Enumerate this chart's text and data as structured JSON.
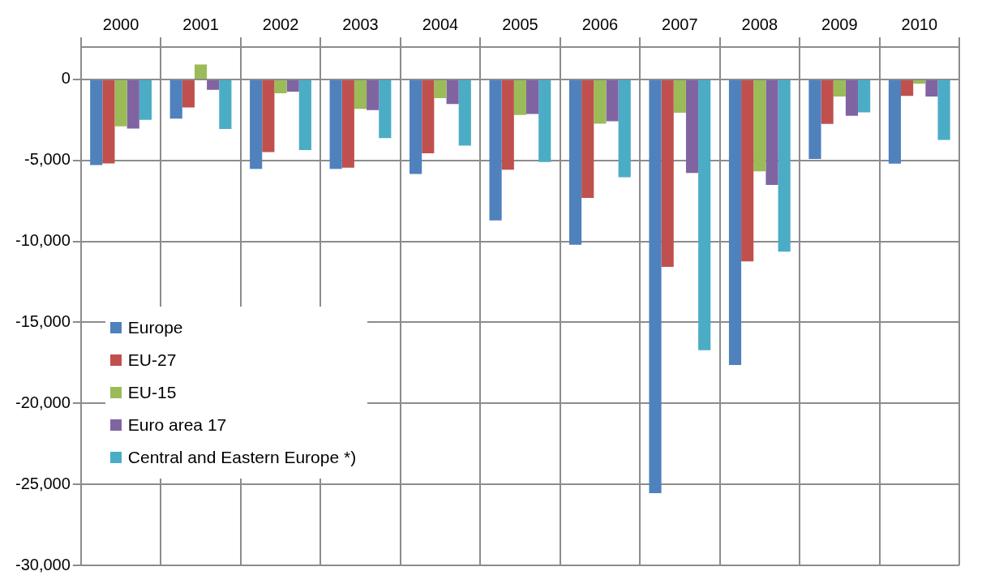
{
  "chart_data": {
    "type": "bar",
    "categories": [
      "2000",
      "2001",
      "2002",
      "2003",
      "2004",
      "2005",
      "2006",
      "2007",
      "2008",
      "2009",
      "2010"
    ],
    "series": [
      {
        "name": "Europe",
        "color": "#4f81bd",
        "values": [
          -5290,
          -2420,
          -5530,
          -5530,
          -5840,
          -8710,
          -10210,
          -25540,
          -17630,
          -4910,
          -5200
        ]
      },
      {
        "name": "EU-27",
        "color": "#c0504d",
        "values": [
          -5190,
          -1730,
          -4490,
          -5450,
          -4560,
          -5570,
          -7310,
          -11570,
          -11230,
          -2740,
          -1020
        ]
      },
      {
        "name": "EU-15",
        "color": "#9bbb59",
        "values": [
          -2900,
          920,
          -860,
          -1820,
          -1160,
          -2190,
          -2730,
          -2060,
          -5670,
          -1050,
          -260
        ]
      },
      {
        "name": "Euro area 17",
        "color": "#8064a2",
        "values": [
          -3030,
          -640,
          -760,
          -1890,
          -1520,
          -2130,
          -2580,
          -5770,
          -6510,
          -2240,
          -1050
        ]
      },
      {
        "name": "Central and Eastern Europe *)",
        "color": "#4bacc6",
        "values": [
          -2500,
          -3060,
          -4360,
          -3620,
          -4080,
          -5100,
          -6040,
          -16720,
          -10630,
          -2030,
          -3740
        ]
      }
    ],
    "ylim": [
      -30000,
      2000
    ],
    "yticks": [
      {
        "value": 0,
        "label": "0"
      },
      {
        "value": -5000,
        "label": "-5,000"
      },
      {
        "value": -10000,
        "label": "-10,000"
      },
      {
        "value": -15000,
        "label": "-15,000"
      },
      {
        "value": -20000,
        "label": "-20,000"
      },
      {
        "value": -25000,
        "label": "-25,000"
      },
      {
        "value": -30000,
        "label": "-30,000"
      }
    ],
    "grid": true,
    "legend": "left"
  }
}
